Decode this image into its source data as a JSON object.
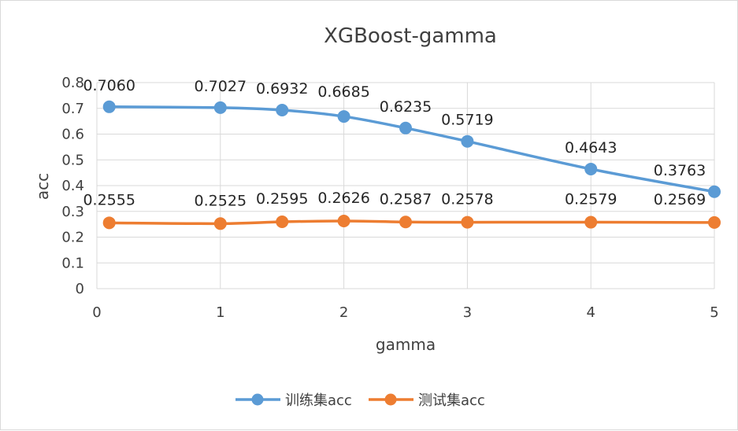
{
  "chart_data": {
    "type": "line",
    "title": "XGBoost-gamma",
    "xlabel": "gamma",
    "ylabel": "acc",
    "xlim": [
      0,
      5
    ],
    "ylim": [
      0,
      0.8
    ],
    "x_ticks": [
      "0",
      "1",
      "2",
      "3",
      "4",
      "5"
    ],
    "y_ticks": [
      "0",
      "0.1",
      "0.2",
      "0.3",
      "0.4",
      "0.5",
      "0.6",
      "0.7",
      "0.8"
    ],
    "x": [
      0.1,
      1,
      1.5,
      2,
      2.5,
      3,
      4,
      5
    ],
    "grid": "vertical and horizontal",
    "legend_position": "bottom",
    "series": [
      {
        "name": "训练集acc",
        "color": "#5B9BD5",
        "values": [
          0.706,
          0.7027,
          0.6932,
          0.6685,
          0.6235,
          0.5719,
          0.4643,
          0.3763
        ],
        "labels": [
          "0.7060",
          "0.7027",
          "0.6932",
          "0.6685",
          "0.6235",
          "0.5719",
          "0.4643",
          "0.3763"
        ]
      },
      {
        "name": "测试集acc",
        "color": "#ED7D31",
        "values": [
          0.2555,
          0.2525,
          0.2595,
          0.2626,
          0.2587,
          0.2578,
          0.2579,
          0.2569
        ],
        "labels": [
          "0.2555",
          "0.2525",
          "0.2595",
          "0.2626",
          "0.2587",
          "0.2578",
          "0.2579",
          "0.2569"
        ]
      }
    ]
  }
}
